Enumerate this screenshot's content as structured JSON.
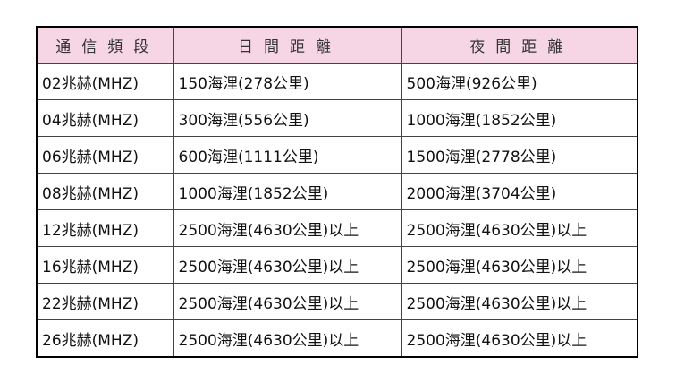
{
  "table": {
    "headers": [
      "通信頻段",
      "日間距離",
      "夜間距離"
    ],
    "rows": [
      [
        "02兆赫(MHZ)",
        "150海浬(278公里)",
        "500海浬(926公里)"
      ],
      [
        "04兆赫(MHZ)",
        "300海浬(556公里)",
        "1000海浬(1852公里)"
      ],
      [
        "06兆赫(MHZ)",
        "600海浬(1111公里)",
        "1500海浬(2778公里)"
      ],
      [
        "08兆赫(MHZ)",
        "1000海浬(1852公里)",
        "2000海浬(3704公里)"
      ],
      [
        "12兆赫(MHZ)",
        "2500海浬(4630公里)以上",
        "2500海浬(4630公里)以上"
      ],
      [
        "16兆赫(MHZ)",
        "2500海浬(4630公里)以上",
        "2500海浬(4630公里)以上"
      ],
      [
        "22兆赫(MHZ)",
        "2500海浬(4630公里)以上",
        "2500海浬(4630公里)以上"
      ],
      [
        "26兆赫(MHZ)",
        "2500海浬(4630公里)以上",
        "2500海浬(4630公里)以上"
      ]
    ]
  },
  "colors": {
    "header_bg": "#f6d6e4",
    "border": "#000000"
  }
}
